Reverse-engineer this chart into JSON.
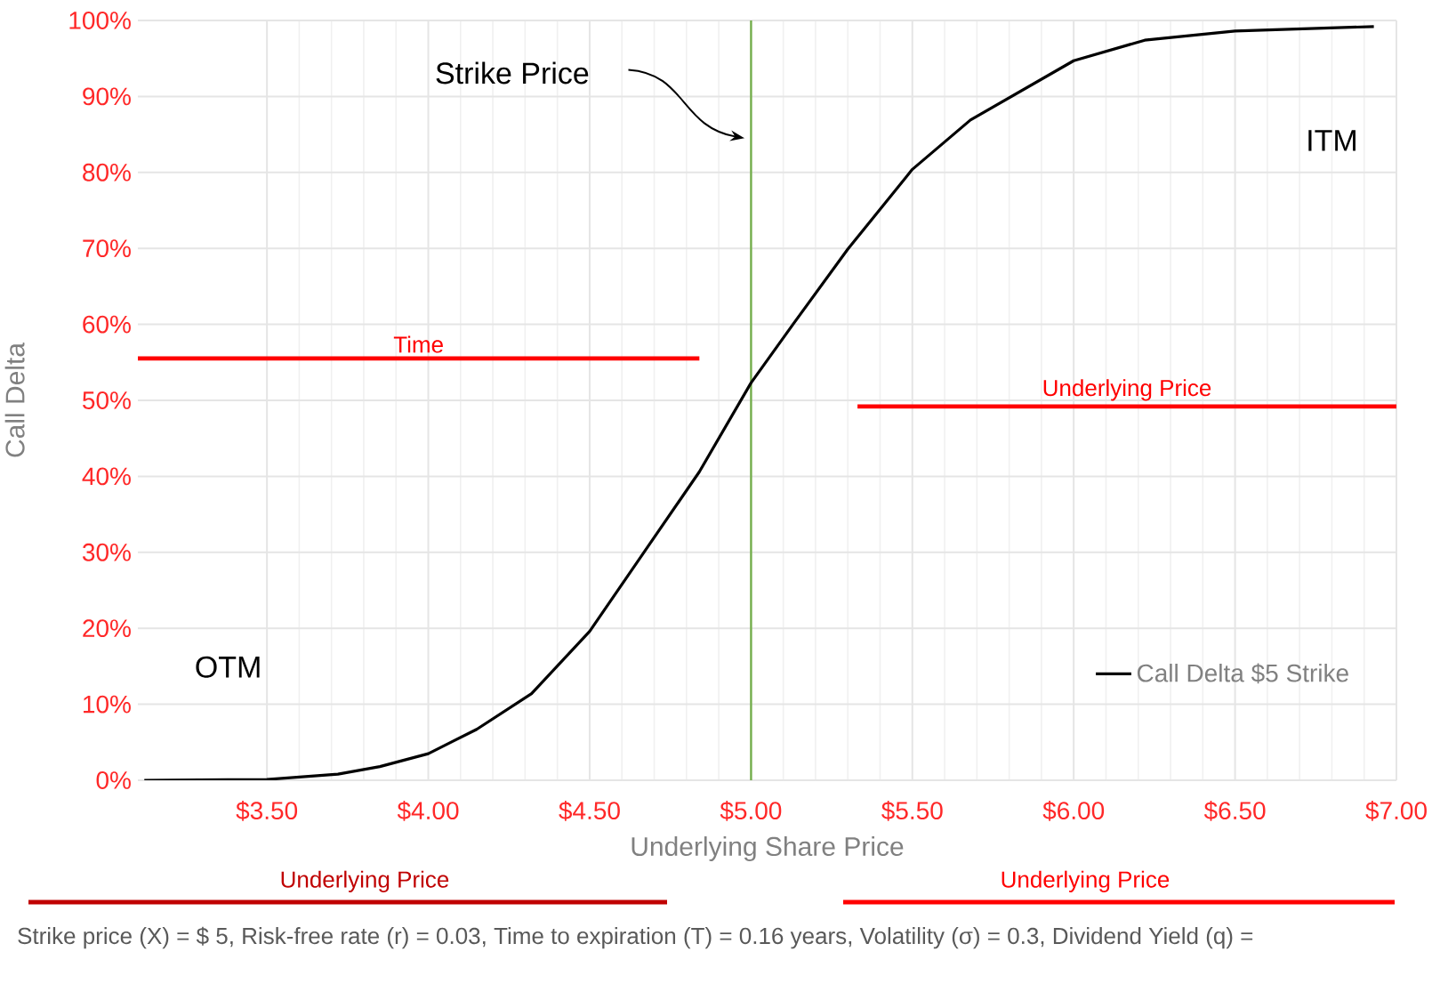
{
  "chart_data": {
    "type": "line",
    "xlabel": "Underlying Share Price",
    "ylabel": "Call Delta",
    "xlim": [
      3.1,
      7.0
    ],
    "ylim": [
      0,
      100
    ],
    "xticks": [
      {
        "value": 3.5,
        "label": "$3.50"
      },
      {
        "value": 4.0,
        "label": "$4.00"
      },
      {
        "value": 4.5,
        "label": "$4.50"
      },
      {
        "value": 5.0,
        "label": "$5.00"
      },
      {
        "value": 5.5,
        "label": "$5.50"
      },
      {
        "value": 6.0,
        "label": "$6.00"
      },
      {
        "value": 6.5,
        "label": "$6.50"
      },
      {
        "value": 7.0,
        "label": "$7.00"
      }
    ],
    "yticks": [
      {
        "value": 0,
        "label": "0%"
      },
      {
        "value": 10,
        "label": "10%"
      },
      {
        "value": 20,
        "label": "20%"
      },
      {
        "value": 30,
        "label": "30%"
      },
      {
        "value": 40,
        "label": "40%"
      },
      {
        "value": 50,
        "label": "50%"
      },
      {
        "value": 60,
        "label": "60%"
      },
      {
        "value": 70,
        "label": "70%"
      },
      {
        "value": 80,
        "label": "80%"
      },
      {
        "value": 90,
        "label": "90%"
      },
      {
        "value": 100,
        "label": "100%"
      }
    ],
    "grid": true,
    "legend": "bottom right",
    "series": [
      {
        "name": "Call Delta $5 Strike",
        "color": "#000000",
        "x": [
          3.12,
          3.5,
          3.72,
          3.85,
          4.0,
          4.15,
          4.32,
          4.5,
          4.67,
          4.84,
          5.0,
          5.13,
          5.3,
          5.5,
          5.68,
          6.0,
          6.22,
          6.5,
          6.93
        ],
        "values": [
          0,
          0.1,
          0.8,
          1.8,
          3.5,
          6.7,
          11.4,
          19.6,
          30.1,
          40.6,
          52.3,
          60,
          69.9,
          80.4,
          86.9,
          94.7,
          97.4,
          98.6,
          99.2
        ]
      },
      {
        "name": "Time",
        "color": "#ff0000",
        "x": [
          3.1,
          4.84
        ],
        "values": [
          55.5,
          55.5
        ]
      },
      {
        "name": "Underlying Price",
        "color": "#ff0000",
        "x": [
          5.33,
          7.0
        ],
        "values": [
          49.2,
          49.2
        ]
      }
    ],
    "ref_lines": [
      {
        "axis": "x",
        "value": 5.0,
        "color": "#70ad47"
      }
    ],
    "annotations": [
      "Strike Price",
      "ITM",
      "OTM",
      "Underlying Price",
      "Underlying Price",
      "Strike price (X) = $ 5, Risk-free rate (r) = 0.03, Time to expiration (T) = 0.16 years, Volatility (σ) = 0.3, Dividend Yield (q) ="
    ]
  }
}
